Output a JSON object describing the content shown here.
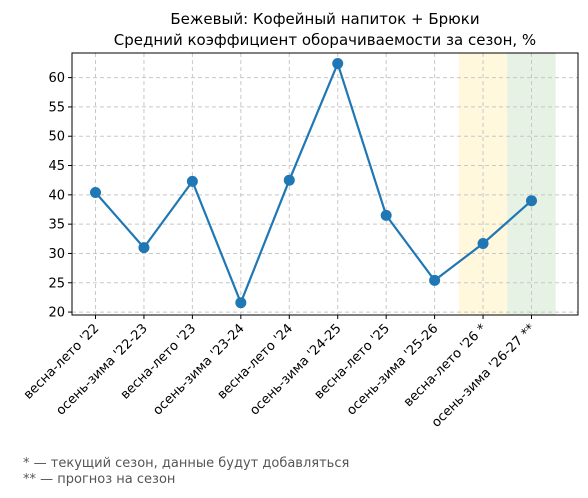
{
  "chart_data": {
    "type": "line",
    "title_line1": "Бежевый: Кофейный напиток + Брюки",
    "title_line2": "Средний коэффициент оборачиваемости за сезон, %",
    "xlabel": "",
    "ylabel": "",
    "categories": [
      "весна-лето '22",
      "осень-зима '22-23",
      "весна-лето '23",
      "осень-зима '23-24",
      "весна-лето '24",
      "осень-зима '24-25",
      "весна-лето '25",
      "осень-зима '25-26",
      "весна-лето '26 *",
      "осень-зима '26-27 **"
    ],
    "values": [
      40.4,
      31.0,
      42.3,
      21.6,
      42.5,
      62.4,
      36.5,
      25.4,
      31.7,
      39.0
    ],
    "ylim": [
      19.5,
      64.2
    ],
    "yticks": [
      20,
      25,
      30,
      35,
      40,
      45,
      50,
      55,
      60
    ],
    "grid": true,
    "line_color": "#1f77b4",
    "highlights": [
      {
        "index": 8,
        "color": "#fff8dc"
      },
      {
        "index": 9,
        "color": "#e6f2e3"
      }
    ]
  },
  "footnotes": {
    "current": "* — текущий сезон, данные будут добавляться",
    "forecast": "** — прогноз на сезон"
  }
}
